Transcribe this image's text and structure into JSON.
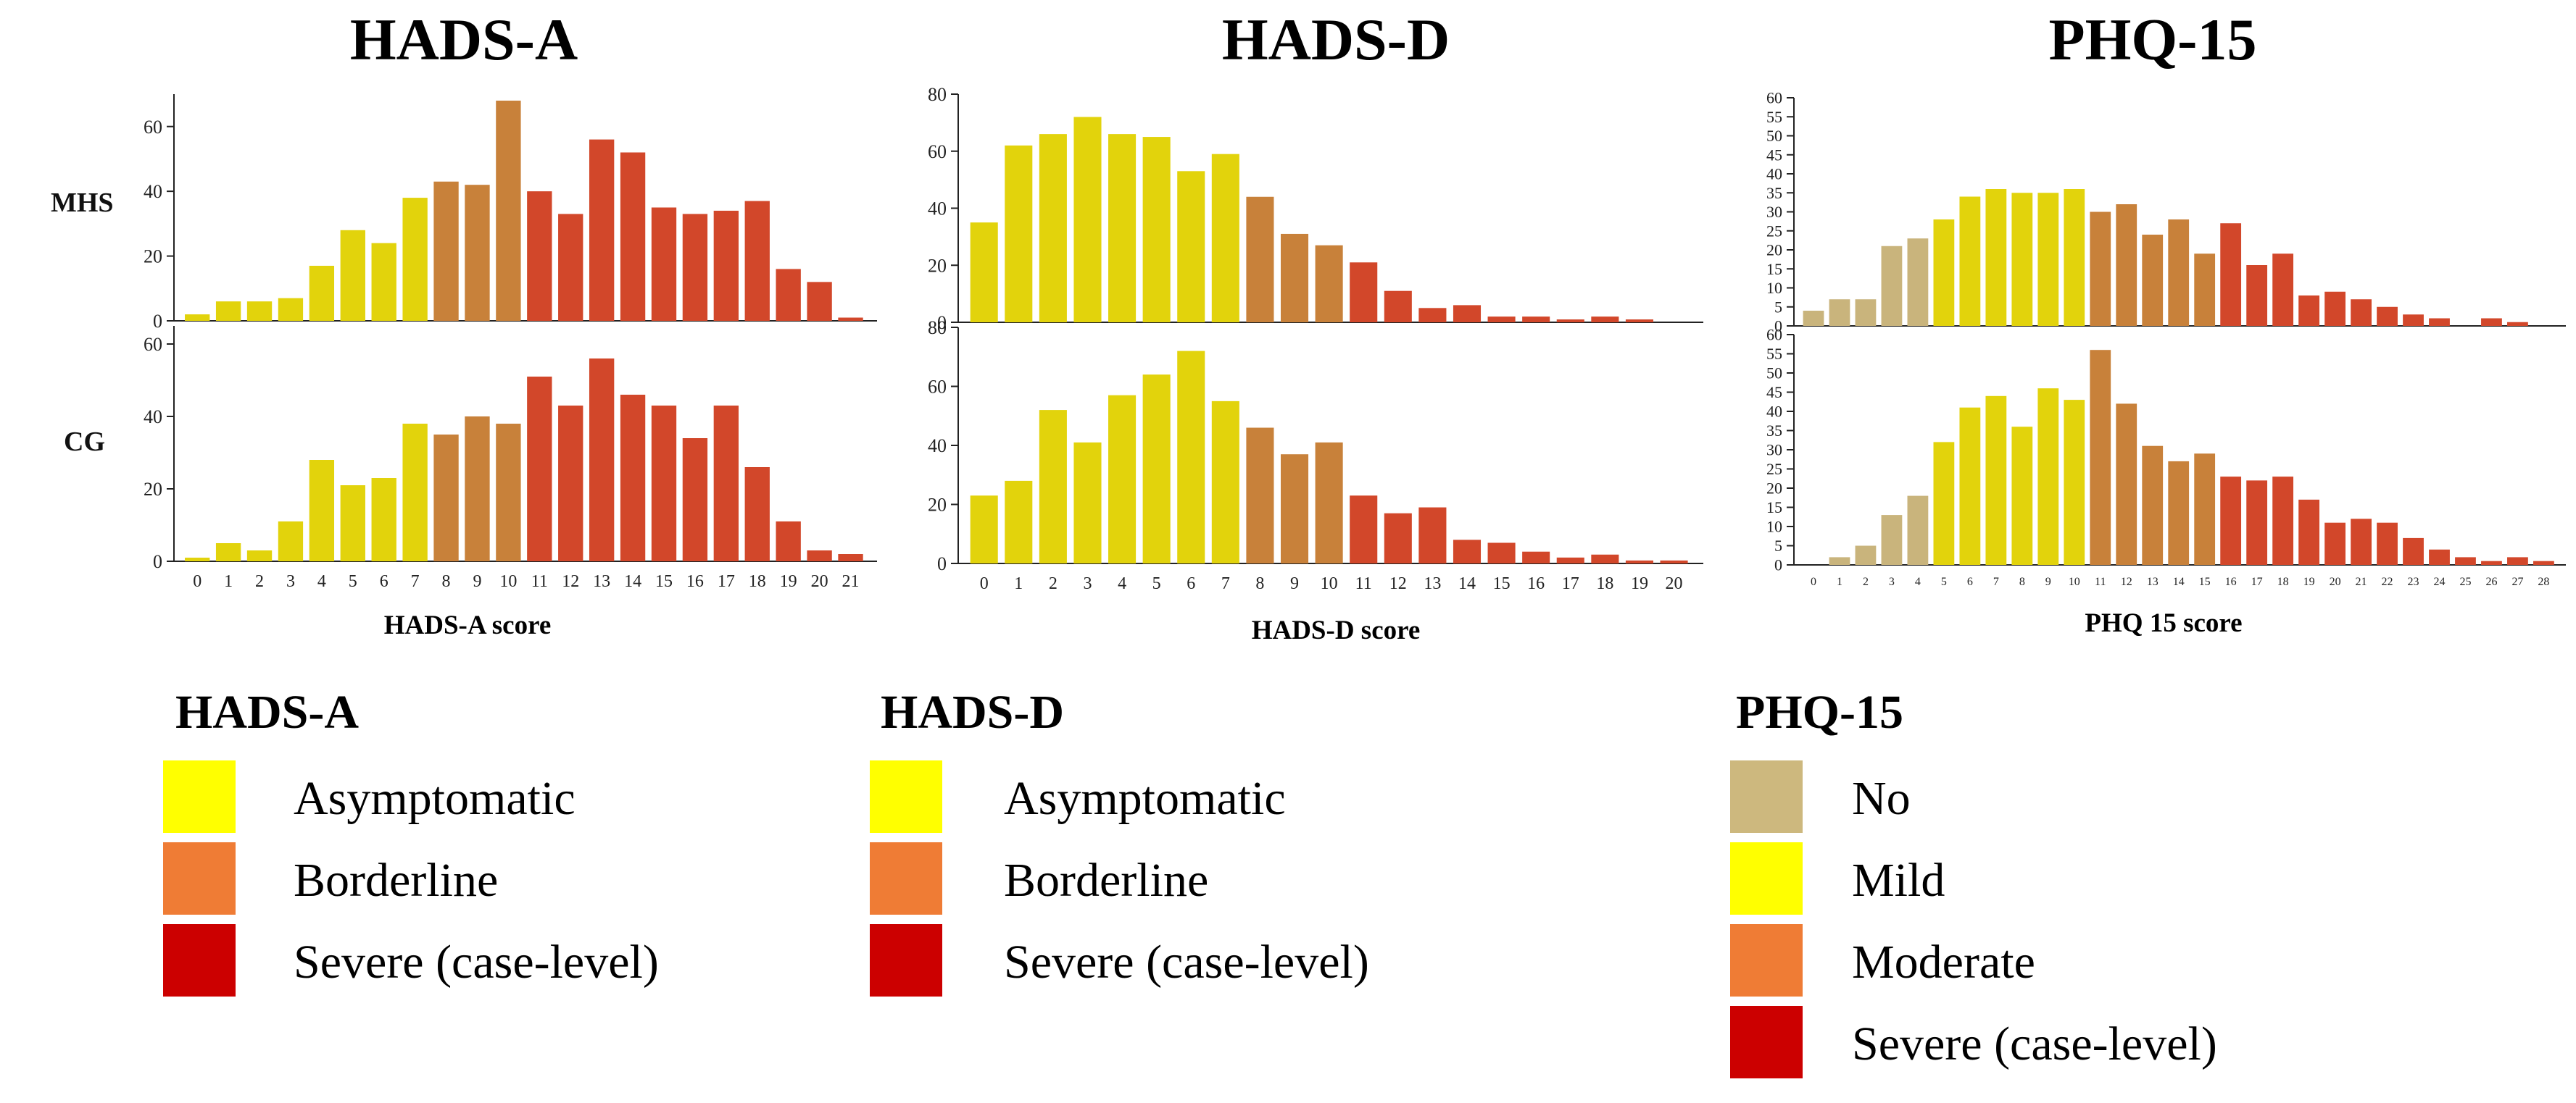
{
  "figure": {
    "row_labels": [
      "MHS",
      "CG"
    ],
    "colors": {
      "pale": "#c9b47c",
      "yellow": "#e2d30c",
      "orange": "#c8813a",
      "red": "#d2472a",
      "legend_pale": "#cdb87e",
      "legend_yellow": "#ffff00",
      "legend_orange": "#ef7c35",
      "legend_red": "#cc0000",
      "axis": "#222222"
    }
  },
  "chart_data": [
    {
      "id": "hads_a",
      "type": "bar",
      "title": "HADS-A",
      "xlabel": "HADS-A score",
      "categories": [
        "0",
        "1",
        "2",
        "3",
        "4",
        "5",
        "6",
        "7",
        "8",
        "9",
        "10",
        "11",
        "12",
        "13",
        "14",
        "15",
        "16",
        "17",
        "18",
        "19",
        "20",
        "21"
      ],
      "category_colors": [
        "yellow",
        "yellow",
        "yellow",
        "yellow",
        "yellow",
        "yellow",
        "yellow",
        "yellow",
        "orange",
        "orange",
        "orange",
        "red",
        "red",
        "red",
        "red",
        "red",
        "red",
        "red",
        "red",
        "red",
        "red",
        "red"
      ],
      "series": [
        {
          "name": "MHS",
          "values": [
            2,
            6,
            6,
            7,
            17,
            28,
            24,
            38,
            43,
            42,
            68,
            40,
            33,
            56,
            52,
            35,
            33,
            34,
            37,
            16,
            12,
            1
          ],
          "ylim": [
            0,
            70
          ],
          "yticks": [
            0,
            20,
            40,
            60
          ]
        },
        {
          "name": "CG",
          "values": [
            1,
            5,
            3,
            11,
            28,
            21,
            23,
            38,
            35,
            40,
            38,
            51,
            43,
            56,
            46,
            43,
            34,
            43,
            26,
            11,
            3,
            2
          ],
          "ylim": [
            0,
            65
          ],
          "yticks": [
            0,
            20,
            40,
            60
          ]
        }
      ]
    },
    {
      "id": "hads_d",
      "type": "bar",
      "title": "HADS-D",
      "xlabel": "HADS-D score",
      "categories": [
        "0",
        "1",
        "2",
        "3",
        "4",
        "5",
        "6",
        "7",
        "8",
        "9",
        "10",
        "11",
        "12",
        "13",
        "14",
        "15",
        "16",
        "17",
        "18",
        "19",
        "20"
      ],
      "category_colors": [
        "yellow",
        "yellow",
        "yellow",
        "yellow",
        "yellow",
        "yellow",
        "yellow",
        "yellow",
        "orange",
        "orange",
        "orange",
        "red",
        "red",
        "red",
        "red",
        "red",
        "red",
        "red",
        "red",
        "red",
        "red"
      ],
      "series": [
        {
          "name": "MHS",
          "values": [
            35,
            62,
            66,
            72,
            66,
            65,
            53,
            59,
            44,
            31,
            27,
            21,
            11,
            5,
            6,
            2,
            2,
            1,
            2,
            1,
            0
          ],
          "ylim": [
            0,
            80
          ],
          "yticks": [
            0,
            20,
            40,
            60,
            80
          ]
        },
        {
          "name": "CG",
          "values": [
            23,
            28,
            52,
            41,
            57,
            64,
            72,
            55,
            46,
            37,
            41,
            23,
            17,
            19,
            8,
            7,
            4,
            2,
            3,
            1,
            1
          ],
          "ylim": [
            0,
            80
          ],
          "yticks": [
            0,
            20,
            40,
            60,
            80
          ]
        }
      ]
    },
    {
      "id": "phq_15",
      "type": "bar",
      "title": "PHQ-15",
      "xlabel": "PHQ 15 score",
      "categories": [
        "0",
        "1",
        "2",
        "3",
        "4",
        "5",
        "6",
        "7",
        "8",
        "9",
        "10",
        "11",
        "12",
        "13",
        "14",
        "15",
        "16",
        "17",
        "18",
        "19",
        "20",
        "21",
        "22",
        "23",
        "24",
        "25",
        "26",
        "27",
        "28"
      ],
      "category_colors": [
        "pale",
        "pale",
        "pale",
        "pale",
        "pale",
        "yellow",
        "yellow",
        "yellow",
        "yellow",
        "yellow",
        "yellow",
        "orange",
        "orange",
        "orange",
        "orange",
        "orange",
        "red",
        "red",
        "red",
        "red",
        "red",
        "red",
        "red",
        "red",
        "red",
        "red",
        "red",
        "red",
        "red"
      ],
      "series": [
        {
          "name": "MHS",
          "values": [
            4,
            7,
            7,
            21,
            23,
            28,
            34,
            36,
            35,
            35,
            36,
            30,
            32,
            24,
            28,
            19,
            27,
            16,
            19,
            8,
            9,
            7,
            5,
            3,
            2,
            0,
            2,
            1,
            0
          ],
          "ylim": [
            0,
            60
          ],
          "yticks": [
            0,
            5,
            10,
            15,
            20,
            25,
            30,
            35,
            40,
            45,
            50,
            55,
            60
          ]
        },
        {
          "name": "CG",
          "values": [
            0,
            2,
            5,
            13,
            18,
            32,
            41,
            44,
            36,
            46,
            43,
            56,
            42,
            31,
            27,
            29,
            23,
            22,
            23,
            17,
            11,
            12,
            11,
            7,
            4,
            2,
            1,
            2,
            1
          ],
          "ylim": [
            0,
            60
          ],
          "yticks": [
            0,
            5,
            10,
            15,
            20,
            25,
            30,
            35,
            40,
            45,
            50,
            55,
            60
          ]
        }
      ]
    }
  ],
  "legends": [
    {
      "title": "HADS-A",
      "items": [
        {
          "label": "Asymptomatic",
          "color": "legend_yellow"
        },
        {
          "label": "Borderline",
          "color": "legend_orange"
        },
        {
          "label": "Severe (case-level)",
          "color": "legend_red"
        }
      ]
    },
    {
      "title": "HADS-D",
      "items": [
        {
          "label": "Asymptomatic",
          "color": "legend_yellow"
        },
        {
          "label": "Borderline",
          "color": "legend_orange"
        },
        {
          "label": "Severe (case-level)",
          "color": "legend_red"
        }
      ]
    },
    {
      "title": "PHQ-15",
      "items": [
        {
          "label": "No",
          "color": "legend_pale"
        },
        {
          "label": "Mild",
          "color": "legend_yellow"
        },
        {
          "label": "Moderate",
          "color": "legend_orange"
        },
        {
          "label": "Severe (case-level)",
          "color": "legend_red"
        }
      ]
    }
  ]
}
